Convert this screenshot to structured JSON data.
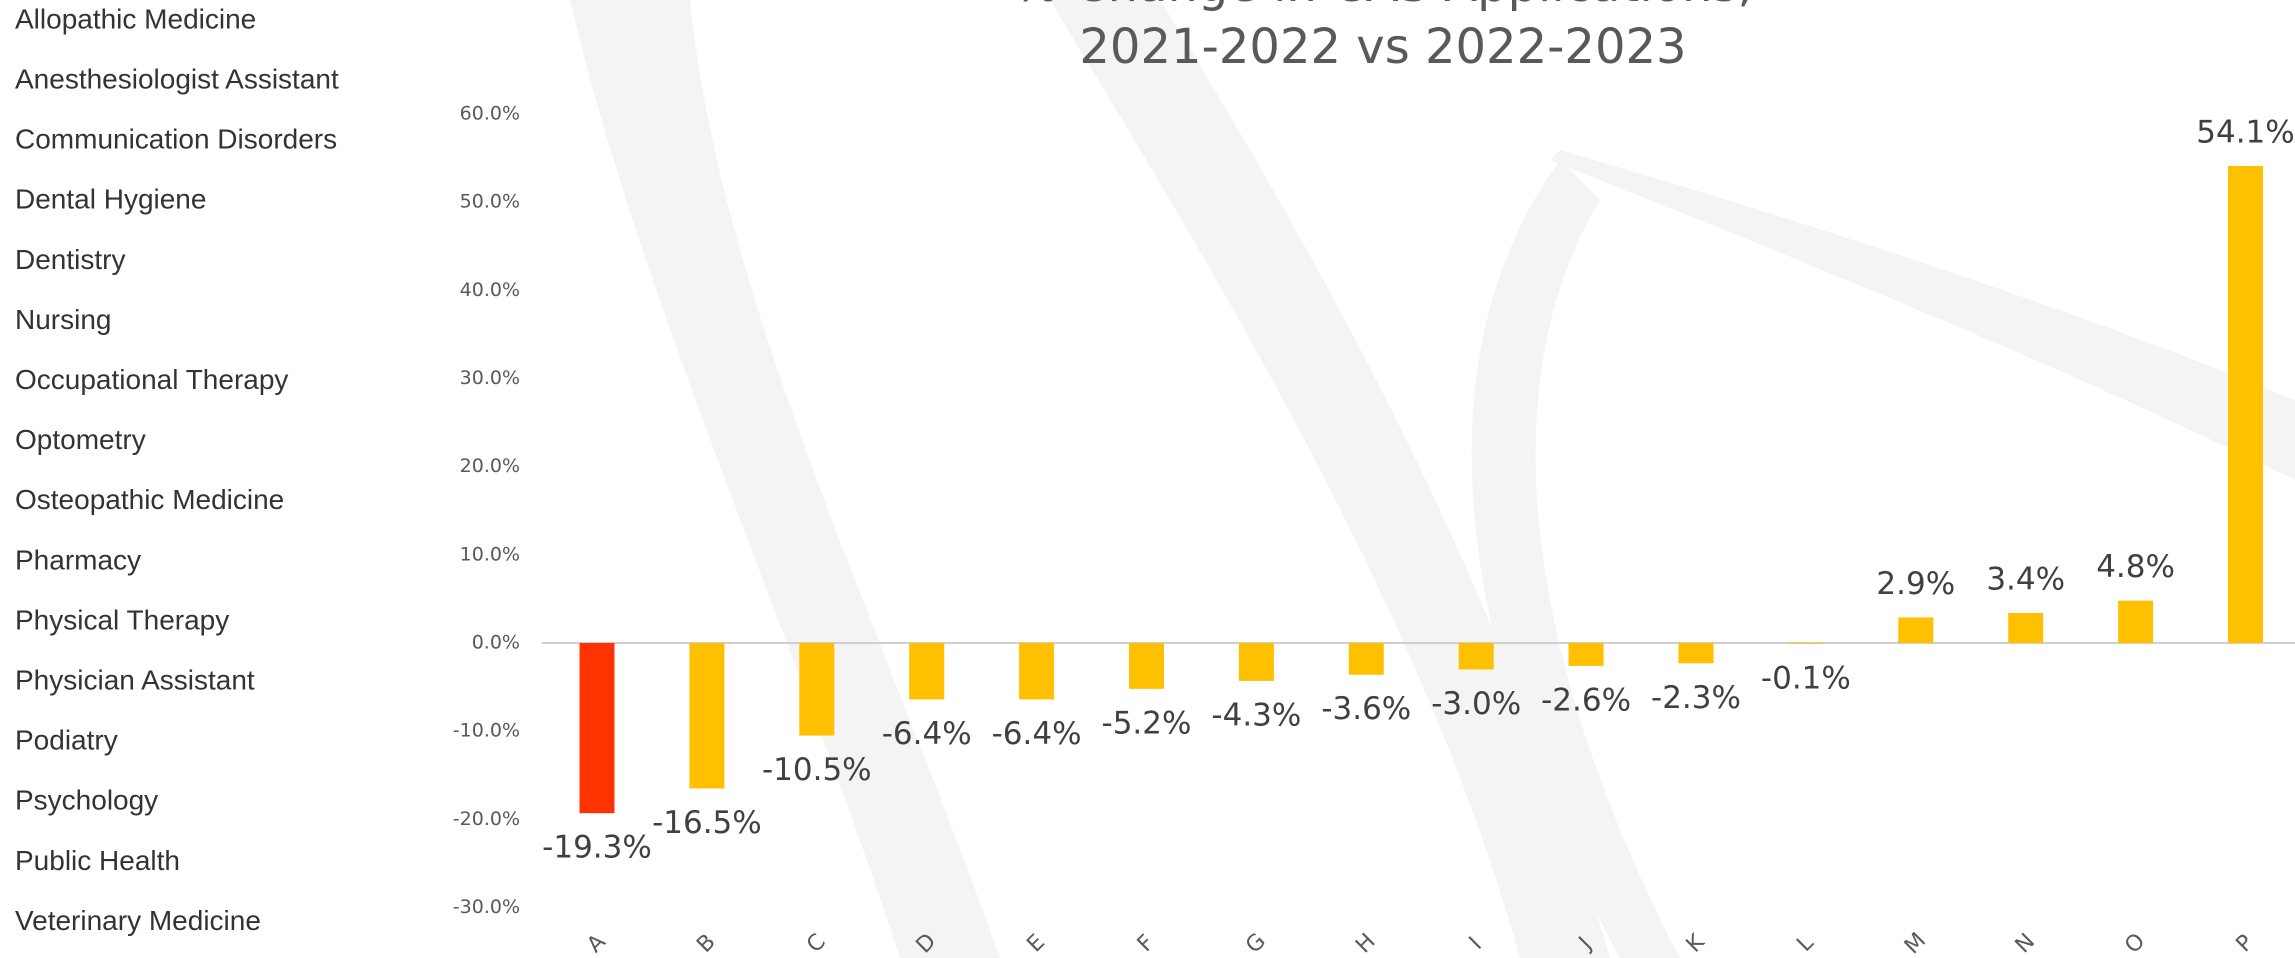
{
  "programs": [
    "Allopathic Medicine",
    "Anesthesiologist Assistant",
    "Communication Disorders",
    "Dental Hygiene",
    "Dentistry",
    "Nursing",
    "Occupational Therapy",
    "Optometry",
    "Osteopathic Medicine",
    "Pharmacy",
    "Physical Therapy",
    "Physician Assistant",
    "Podiatry",
    "Psychology",
    "Public Health",
    "Veterinary Medicine"
  ],
  "chart_data": {
    "type": "bar",
    "title": [
      "% Change in CAS Applications,",
      "2021-2022 vs 2022-2023"
    ],
    "categories": [
      "A",
      "B",
      "C",
      "D",
      "E",
      "F",
      "G",
      "H",
      "I",
      "J",
      "K",
      "L",
      "M",
      "N",
      "O",
      "P"
    ],
    "values": [
      -19.3,
      -16.5,
      -10.5,
      -6.4,
      -6.4,
      -5.2,
      -4.3,
      -3.6,
      -3.0,
      -2.6,
      -2.3,
      -0.1,
      2.9,
      3.4,
      4.8,
      54.1
    ],
    "value_labels": [
      "-19.3%",
      "-16.5%",
      "-10.5%",
      "-6.4%",
      "-6.4%",
      "-5.2%",
      "-4.3%",
      "-3.6%",
      "-3.0%",
      "-2.6%",
      "-2.3%",
      "-0.1%",
      "2.9%",
      "3.4%",
      "4.8%",
      "54.1%"
    ],
    "colors": [
      "#ff3300",
      "#ffc000",
      "#ffc000",
      "#ffc000",
      "#ffc000",
      "#ffc000",
      "#ffc000",
      "#ffc000",
      "#ffc000",
      "#ffc000",
      "#ffc000",
      "#ffc000",
      "#ffc000",
      "#ffc000",
      "#ffc000",
      "#ffc000"
    ],
    "ylim": [
      -30,
      60
    ],
    "yticks": [
      {
        "value": -30,
        "label": "-30.0%"
      },
      {
        "value": -20,
        "label": "-20.0%"
      },
      {
        "value": -10,
        "label": "-10.0%"
      },
      {
        "value": 0,
        "label": "0.0%"
      },
      {
        "value": 10,
        "label": "10.0%"
      },
      {
        "value": 20,
        "label": "20.0%"
      },
      {
        "value": 30,
        "label": "30.0%"
      },
      {
        "value": 40,
        "label": "40.0%"
      },
      {
        "value": 50,
        "label": "50.0%"
      },
      {
        "value": 60,
        "label": "60.0%"
      }
    ],
    "grid": false
  }
}
